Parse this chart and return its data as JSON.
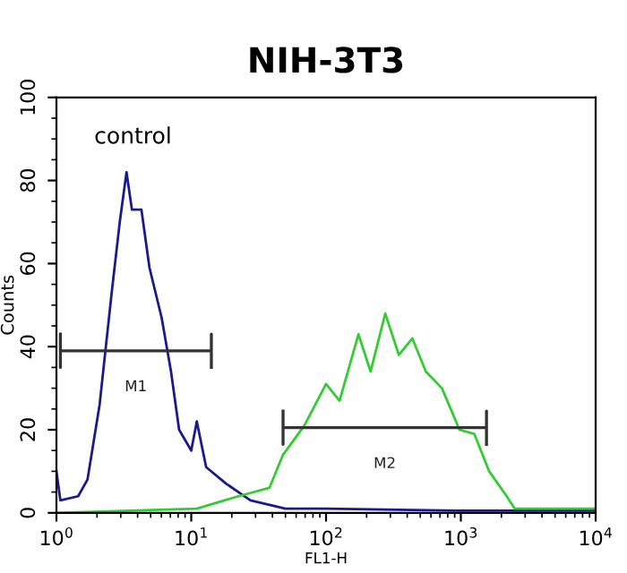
{
  "chart_data": {
    "type": "line",
    "title": "NIH-3T3",
    "xlabel": "FL1-H",
    "ylabel": "Counts",
    "log": "x",
    "xlim": [
      1,
      10000
    ],
    "ylim": [
      0,
      100
    ],
    "xticks": [
      {
        "value": 1,
        "label": "10$^{0}$"
      },
      {
        "value": 10,
        "label": "10$^{1}$"
      },
      {
        "value": 100,
        "label": "10$^{2}$"
      },
      {
        "value": 1000,
        "label": "10$^{3}$"
      },
      {
        "value": 10000,
        "label": "10$^{4}$"
      }
    ],
    "yticks": [
      0,
      20,
      40,
      60,
      80,
      100
    ],
    "grid": false,
    "legend": false,
    "marker": "none",
    "line_style": "solid",
    "annotations": [
      "control"
    ],
    "series": [
      {
        "color": "#1a1a8c",
        "x": [
          1,
          1.07,
          1.45,
          1.7,
          2.09,
          2.57,
          2.95,
          3.31,
          3.63,
          4.27,
          4.9,
          6.03,
          7.08,
          8.13,
          10,
          11,
          12.9,
          18.2,
          27.5,
          50,
          100,
          1000,
          10000
        ],
        "values": [
          10,
          3,
          4,
          8,
          26,
          53,
          70,
          82,
          73,
          73,
          59,
          47,
          34,
          20,
          15,
          22,
          11,
          7,
          3,
          1,
          1,
          0.5,
          0.5
        ]
      },
      {
        "color": "#33cc33",
        "x": [
          1,
          11,
          22.4,
          38,
          48,
          69,
          100,
          126,
          174,
          214,
          275,
          347,
          437,
          550,
          724,
          977,
          1259,
          1622,
          2188,
          2512,
          10000
        ],
        "values": [
          0,
          1,
          4,
          6,
          14,
          21,
          31,
          27,
          43,
          34,
          48,
          38,
          42,
          34,
          30,
          20,
          19,
          10,
          4,
          1,
          1
        ]
      },
      {
        "name": "M1",
        "color": "#333333",
        "x": [
          1.07,
          1.07,
          1.07,
          14.1,
          14.1,
          14.1
        ],
        "values": [
          43,
          35,
          39,
          39,
          43,
          35
        ]
      },
      {
        "name": "M2",
        "color": "#333333",
        "x": [
          48,
          48,
          48,
          1550,
          1550,
          1550
        ],
        "values": [
          24.5,
          16.5,
          20.5,
          20.5,
          24.5,
          16.5
        ]
      }
    ]
  }
}
